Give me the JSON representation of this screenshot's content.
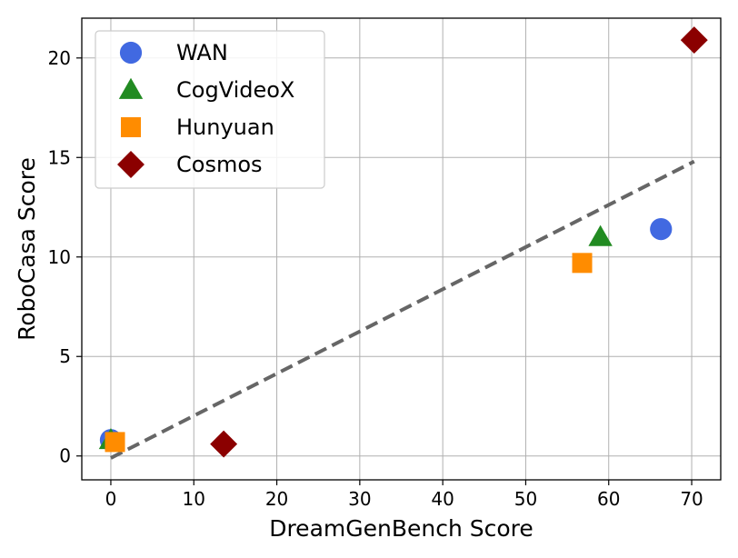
{
  "chart_data": {
    "type": "scatter",
    "title": "",
    "xlabel": "DreamGenBench Score",
    "ylabel": "RoboCasa Score",
    "xlim": [
      -3.5,
      73.5
    ],
    "ylim": [
      -1.2,
      22.0
    ],
    "xticks": [
      0,
      10,
      20,
      30,
      40,
      50,
      60,
      70
    ],
    "yticks": [
      0,
      5,
      10,
      15,
      20
    ],
    "grid": true,
    "legend_position": "top-left",
    "series": [
      {
        "name": "WAN",
        "marker": "circle",
        "color": "#4169E1",
        "points": [
          {
            "x": 0.0,
            "y": 0.8
          },
          {
            "x": 66.3,
            "y": 11.4
          }
        ]
      },
      {
        "name": "CogVideoX",
        "marker": "triangle",
        "color": "#228B22",
        "points": [
          {
            "x": 0.0,
            "y": 0.8
          },
          {
            "x": 59.0,
            "y": 11.0
          }
        ]
      },
      {
        "name": "Hunyuan",
        "marker": "square",
        "color": "#FF8C00",
        "points": [
          {
            "x": 0.5,
            "y": 0.7
          },
          {
            "x": 56.8,
            "y": 9.7
          }
        ]
      },
      {
        "name": "Cosmos",
        "marker": "diamond",
        "color": "#8B0000",
        "points": [
          {
            "x": 13.6,
            "y": 0.6
          },
          {
            "x": 70.3,
            "y": 20.9
          }
        ]
      }
    ],
    "trendline": {
      "style": "dashed",
      "color": "#666666",
      "x": [
        0,
        70.3
      ],
      "y": [
        -0.1,
        14.8
      ]
    }
  }
}
